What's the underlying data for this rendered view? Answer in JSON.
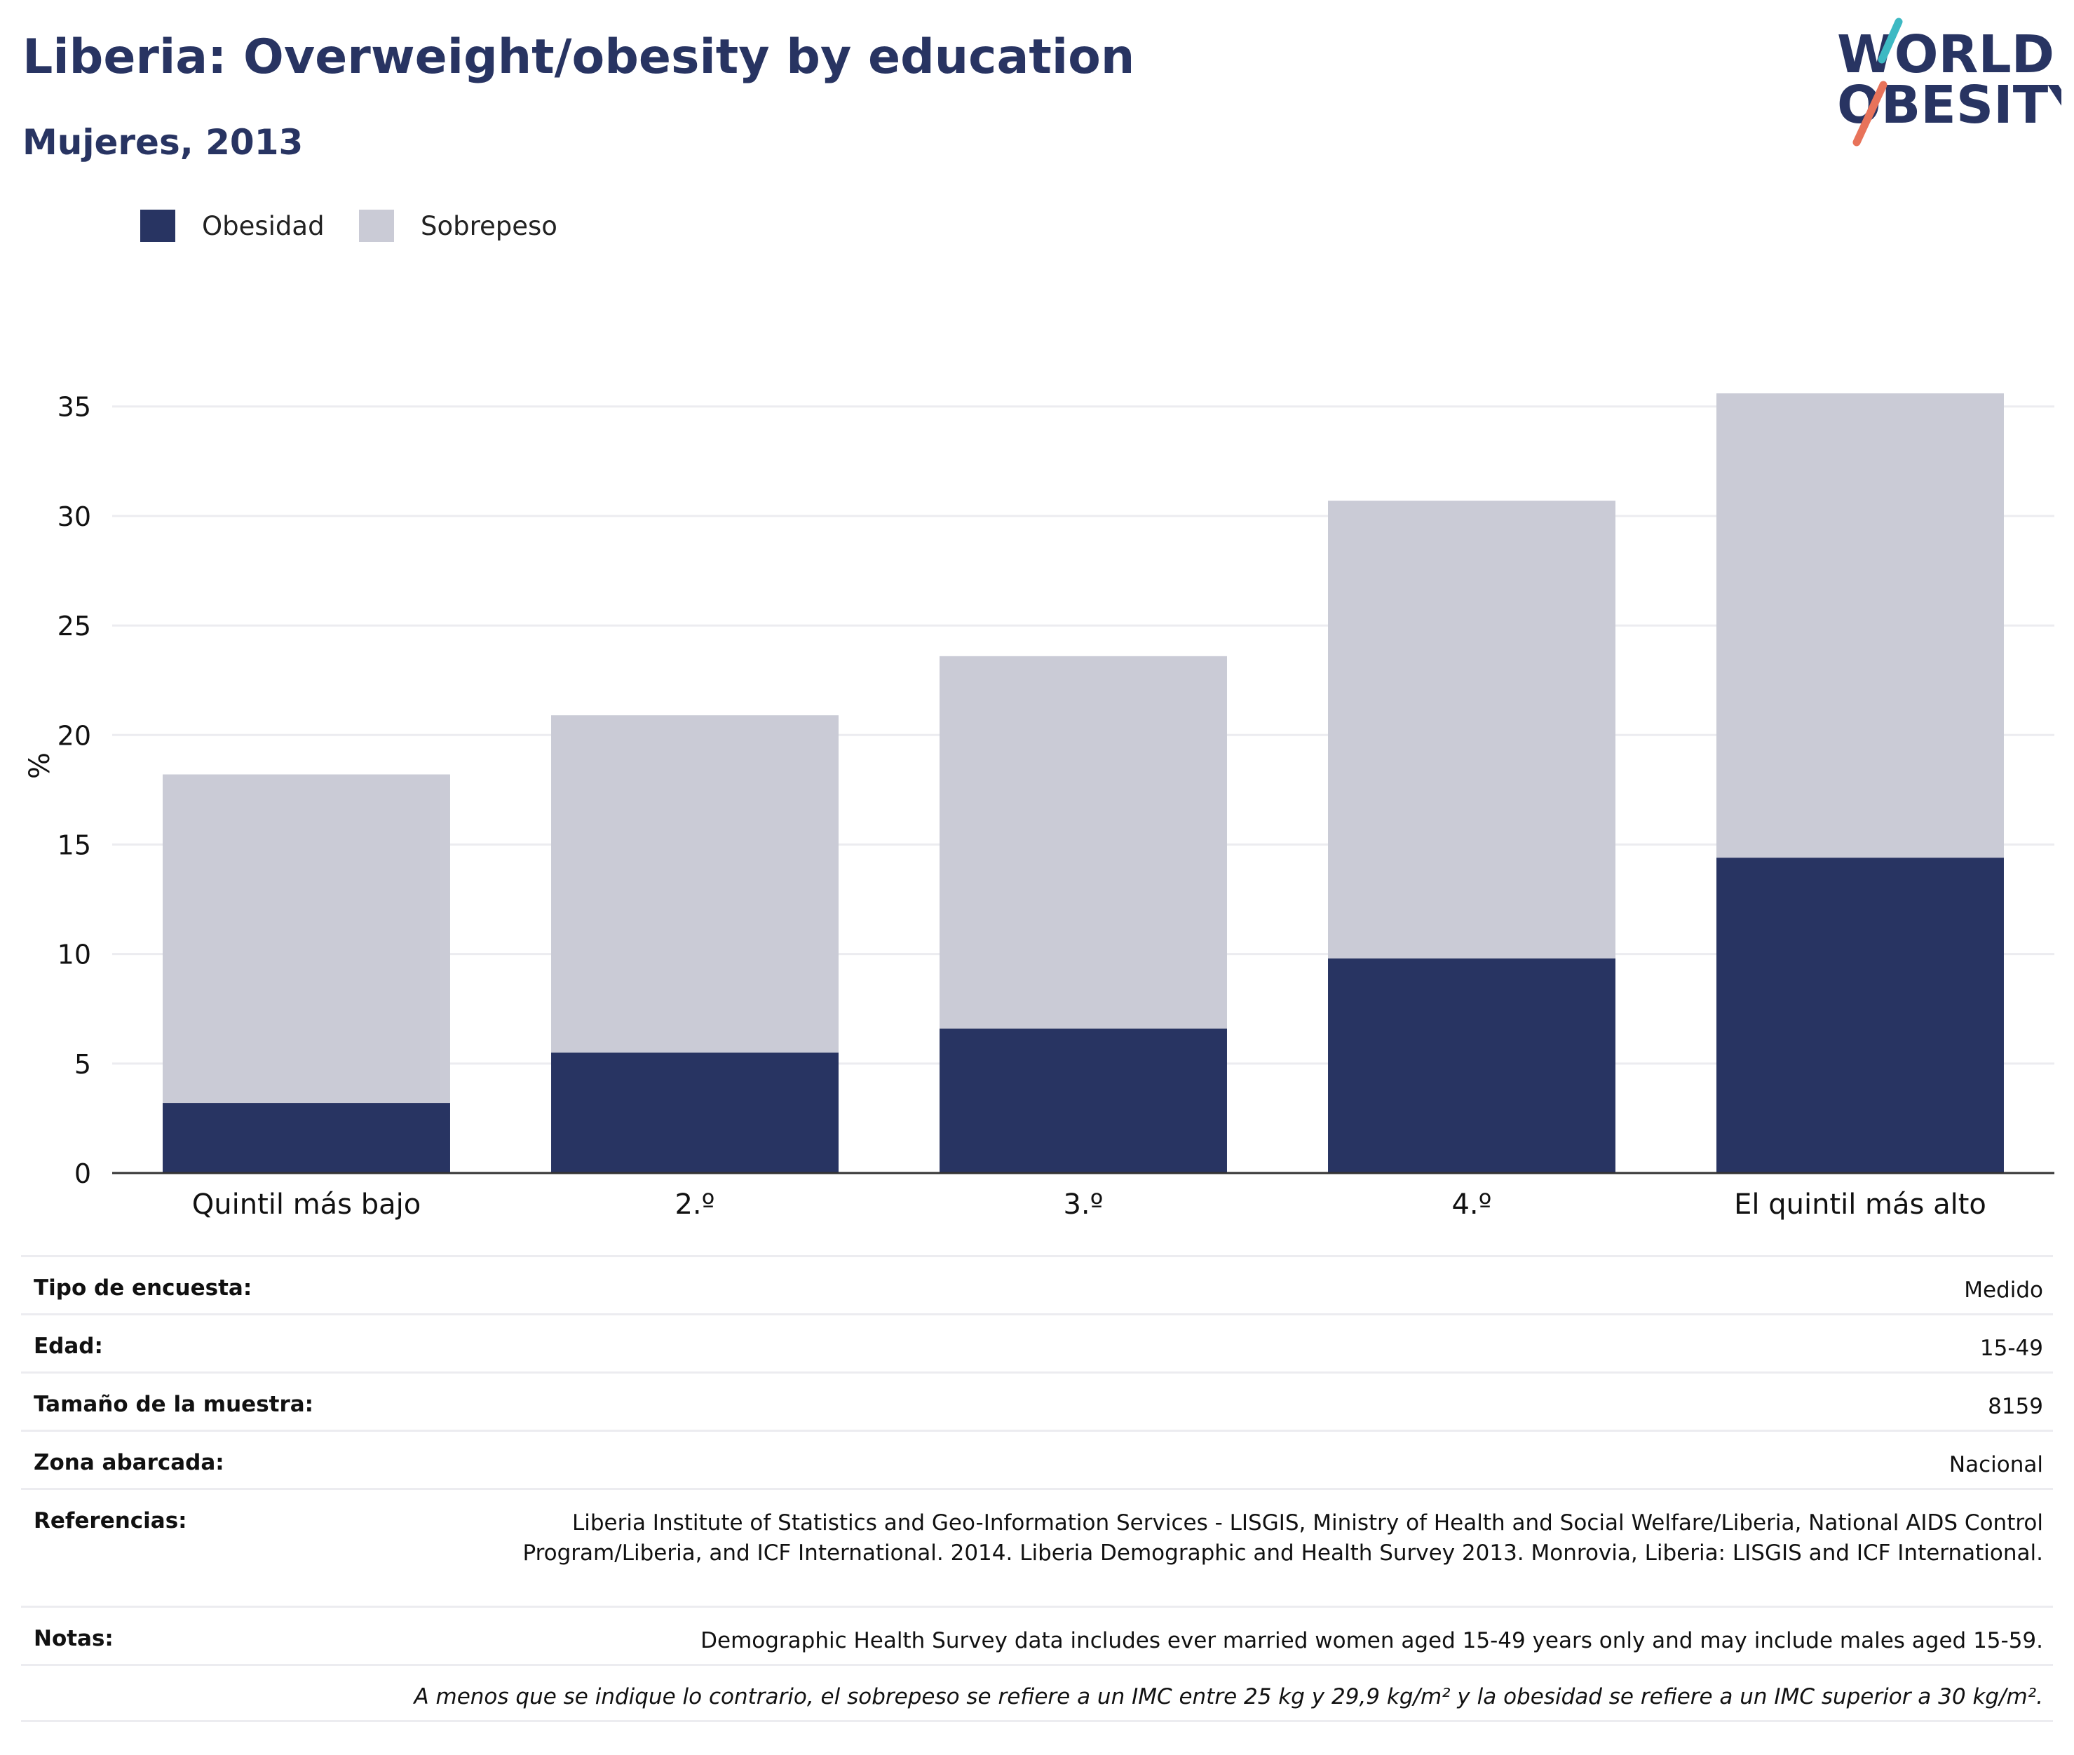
{
  "header": {
    "title": "Liberia: Overweight/obesity by education",
    "subtitle": "Mujeres, 2013"
  },
  "logo": {
    "line1": "WORLD",
    "line2": "OBESITY"
  },
  "colors": {
    "obesity": "#283462",
    "overweight": "#cacbd6",
    "title": "#283462",
    "grid": "#ececf0",
    "axis": "#333333",
    "logo_teal": "#3db9c3",
    "logo_coral": "#e8735a"
  },
  "chart_data": {
    "type": "bar",
    "stacked": true,
    "categories": [
      "Quintil más bajo",
      "2.º",
      "3.º",
      "4.º",
      "El quintil más alto"
    ],
    "series": [
      {
        "name": "Obesidad",
        "values": [
          3.2,
          5.5,
          6.6,
          9.8,
          14.4
        ]
      },
      {
        "name": "Sobrepeso",
        "values": [
          15.0,
          15.4,
          17.0,
          20.9,
          21.2
        ]
      }
    ],
    "title": "",
    "xlabel": "",
    "ylabel": "%",
    "ylim": [
      0,
      35.6
    ],
    "yticks": [
      0,
      5,
      10,
      15,
      20,
      25,
      30,
      35
    ],
    "grid": true,
    "legend": "top-left"
  },
  "info": {
    "rows": [
      {
        "label": "Tipo de encuesta:",
        "value": "Medido"
      },
      {
        "label": "Edad:",
        "value": "15-49"
      },
      {
        "label": "Tamaño de la muestra:",
        "value": "8159"
      },
      {
        "label": "Zona abarcada:",
        "value": "Nacional"
      },
      {
        "label": "Referencias:",
        "value": "Liberia Institute of Statistics and Geo-Information Services - LISGIS, Ministry of Health and Social Welfare/Liberia, National AIDS Control Program/Liberia, and ICF International. 2014. Liberia Demographic and Health Survey 2013. Monrovia, Liberia: LISGIS and ICF International."
      },
      {
        "label": "Notas:",
        "value": "Demographic Health Survey data includes ever married women aged 15-49 years only and may include males aged 15-59."
      }
    ],
    "footnote": "A menos que se indique lo contrario, el sobrepeso se refiere a un IMC entre 25 kg y 29,9 kg/m² y la obesidad se refiere a un IMC superior a 30 kg/m²."
  }
}
